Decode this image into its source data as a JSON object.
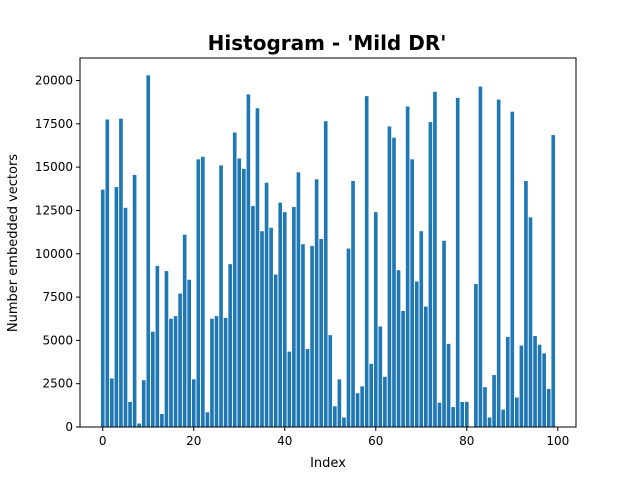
{
  "chart_data": {
    "type": "bar",
    "title": "Histogram - 'Mild DR'",
    "xlabel": "Index",
    "ylabel": "Number embedded vectors",
    "xlim": [
      -5,
      104
    ],
    "ylim": [
      0,
      21300
    ],
    "xticks": [
      0,
      20,
      40,
      60,
      80,
      100
    ],
    "yticks": [
      0,
      2500,
      5000,
      7500,
      10000,
      12500,
      15000,
      17500,
      20000
    ],
    "bar_color": "#1f77b4",
    "x": [
      0,
      1,
      2,
      3,
      4,
      5,
      6,
      7,
      8,
      9,
      10,
      11,
      12,
      13,
      14,
      15,
      16,
      17,
      18,
      19,
      20,
      21,
      22,
      23,
      24,
      25,
      26,
      27,
      28,
      29,
      30,
      31,
      32,
      33,
      34,
      35,
      36,
      37,
      38,
      39,
      40,
      41,
      42,
      43,
      44,
      45,
      46,
      47,
      48,
      49,
      50,
      51,
      52,
      53,
      54,
      55,
      56,
      57,
      58,
      59,
      60,
      61,
      62,
      63,
      64,
      65,
      66,
      67,
      68,
      69,
      70,
      71,
      72,
      73,
      74,
      75,
      76,
      77,
      78,
      79,
      80,
      81,
      82,
      83,
      84,
      85,
      86,
      87,
      88,
      89,
      90,
      91,
      92,
      93,
      94,
      95,
      96,
      97,
      98,
      99
    ],
    "values": [
      13700,
      17750,
      2800,
      13850,
      17800,
      12650,
      1450,
      14550,
      200,
      2700,
      20300,
      5500,
      9300,
      750,
      9000,
      6250,
      6400,
      7700,
      11100,
      8500,
      2750,
      15450,
      15600,
      850,
      6250,
      6400,
      15100,
      6300,
      9400,
      17000,
      15500,
      14900,
      19200,
      12750,
      18400,
      11300,
      14100,
      11500,
      8800,
      12950,
      12400,
      4350,
      12700,
      14700,
      10550,
      4500,
      10450,
      14300,
      10850,
      17650,
      5300,
      1200,
      2750,
      550,
      10300,
      14200,
      1950,
      2350,
      19100,
      3650,
      12400,
      5800,
      2900,
      17350,
      16700,
      9050,
      6700,
      18500,
      15450,
      8400,
      11300,
      6950,
      17600,
      19350,
      1400,
      10750,
      4800,
      1150,
      19000,
      1450,
      1450,
      0,
      8250,
      19650,
      2300,
      550,
      3000,
      18900,
      1000,
      5200,
      18200,
      1700,
      4700,
      14200,
      12100,
      5250,
      4750,
      4250,
      2200,
      16850
    ]
  }
}
